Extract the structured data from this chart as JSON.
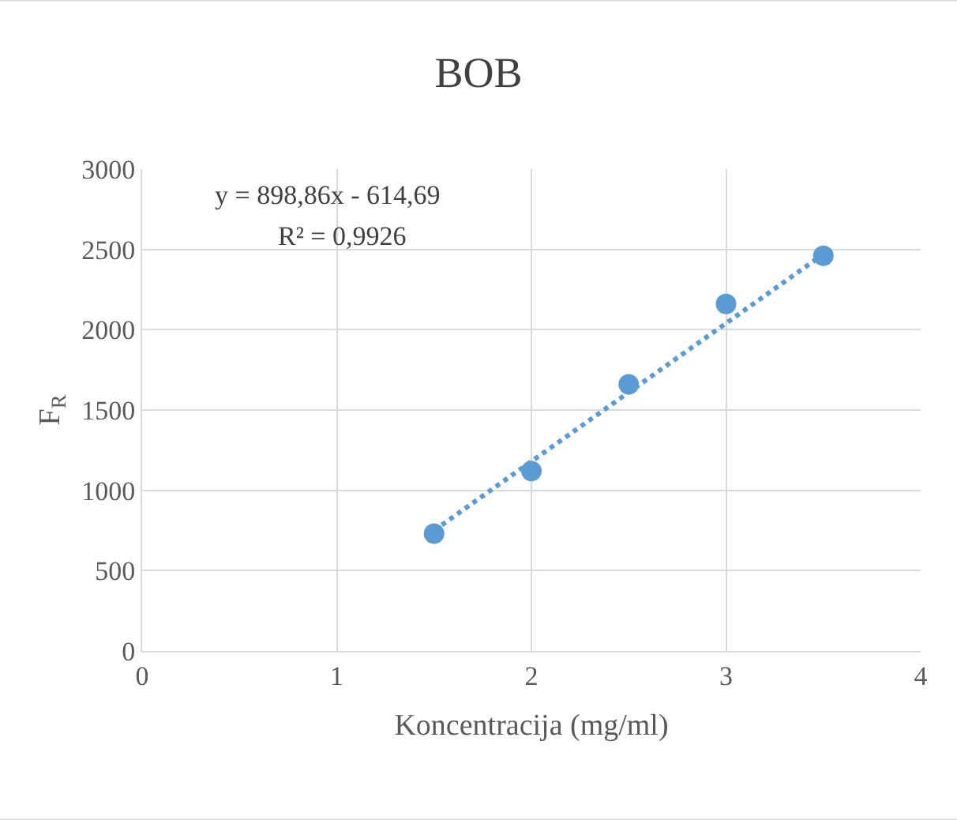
{
  "chart_data": {
    "type": "scatter",
    "title": "BOB",
    "xlabel": "Koncentracija (mg/ml)",
    "ylabel": "F$_{R}$",
    "x": [
      1.5,
      2,
      2.5,
      3,
      3.5
    ],
    "series": [
      {
        "color": "#5b9bd5",
        "values": [
          730,
          1120,
          1660,
          2160,
          2460
        ],
        "marker": "circle"
      },
      {
        "type": "line",
        "color": "#5b9bd5",
        "x": [
          1.5,
          3.5
        ],
        "values": [
          750,
          2470
        ],
        "line_style": "dotted",
        "marker": "none"
      }
    ],
    "annotations": [
      "y = 898,86x - 614,69",
      "R² = 0,9926"
    ],
    "xlim": [
      0,
      4
    ],
    "xticks": [
      0,
      1,
      2,
      3,
      4
    ],
    "ylim": [
      0,
      3000
    ],
    "yticks": [
      0,
      500,
      1000,
      1500,
      2000,
      2500,
      3000
    ],
    "grid": true
  }
}
